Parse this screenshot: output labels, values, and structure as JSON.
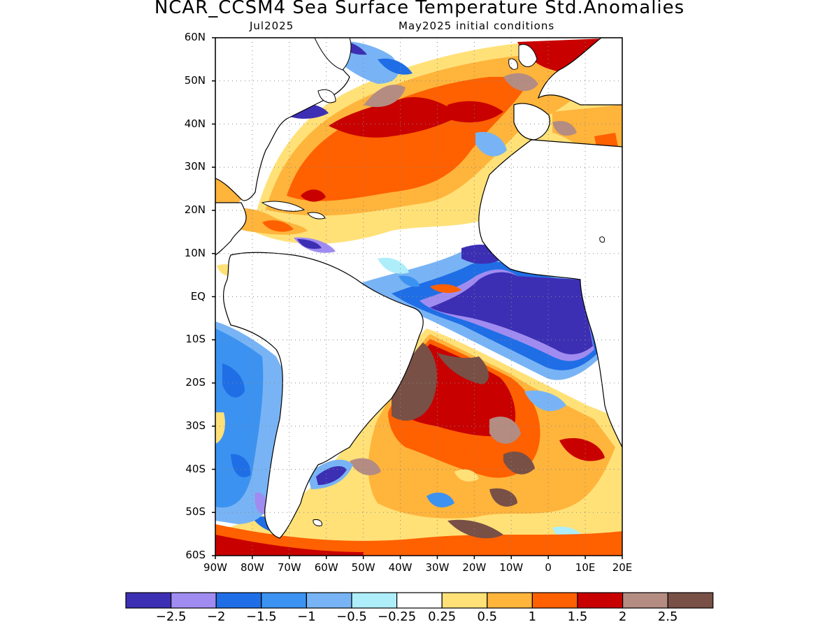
{
  "title": "NCAR_CCSM4 Sea Surface Temperature Std.Anomalies",
  "subtitle_left": "Jul2025",
  "subtitle_right": "May2025 initial conditions",
  "lat_labels": [
    "60N",
    "50N",
    "40N",
    "30N",
    "20N",
    "10N",
    "EQ",
    "10S",
    "20S",
    "30S",
    "40S",
    "50S",
    "60S"
  ],
  "lon_labels": [
    "90W",
    "80W",
    "70W",
    "60W",
    "50W",
    "40W",
    "30W",
    "20W",
    "10W",
    "0",
    "10E",
    "20E"
  ],
  "colorbar": {
    "colors": [
      "#3c2fb4",
      "#a08cf0",
      "#1f6ee6",
      "#3c92f0",
      "#78b4f5",
      "#aeeefa",
      "#ffffff",
      "#ffe178",
      "#ffb43c",
      "#ff6000",
      "#c80000",
      "#b48c82",
      "#785046"
    ],
    "labels": [
      "-2.5",
      "-2",
      "-1.5",
      "-1",
      "-0.5",
      "-0.25",
      "0.25",
      "0.5",
      "1",
      "1.5",
      "2",
      "2.5"
    ]
  },
  "map_extent": {
    "lon": [
      -90,
      20
    ],
    "lat": [
      -60,
      60
    ]
  }
}
